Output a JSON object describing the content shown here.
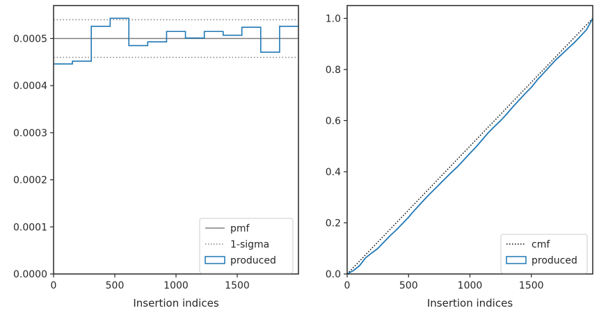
{
  "colors": {
    "produced": "#1f77b4",
    "pmf": "#808080",
    "sigma": "#808080",
    "cmf": "#000000",
    "frame": "#262626"
  },
  "chart_data": [
    {
      "type": "step-histogram",
      "title": "",
      "xlabel": "Insertion indices",
      "ylabel": "",
      "xlim": [
        0,
        2000
      ],
      "ylim": [
        0,
        0.00057
      ],
      "x_ticks": [
        0,
        500,
        1000,
        1500
      ],
      "x_tick_labels": [
        "0",
        "500",
        "1000",
        "1500"
      ],
      "y_ticks": [
        0,
        0.0001,
        0.0002,
        0.0003,
        0.0004,
        0.0005
      ],
      "y_tick_labels": [
        "0.0000",
        "0.0001",
        "0.0002",
        "0.0003",
        "0.0004",
        "0.0005"
      ],
      "legend_position": "lower right",
      "pmf": 0.0005,
      "sigma_band": [
        0.00046,
        0.00054
      ],
      "series": [
        {
          "name": "produced",
          "bin_edges": [
            0,
            154,
            308,
            462,
            615,
            769,
            923,
            1077,
            1231,
            1385,
            1538,
            1692,
            1846,
            2000
          ],
          "values": [
            0.000446,
            0.000452,
            0.000526,
            0.000543,
            0.000485,
            0.000493,
            0.000515,
            0.000501,
            0.000515,
            0.000507,
            0.000524,
            0.000471,
            0.000526
          ]
        }
      ],
      "legend": [
        {
          "label": "pmf",
          "style": "solid-line"
        },
        {
          "label": "1-sigma",
          "style": "dotted-line"
        },
        {
          "label": "produced",
          "style": "box"
        }
      ]
    },
    {
      "type": "line",
      "title": "",
      "xlabel": "Insertion indices",
      "ylabel": "",
      "xlim": [
        0,
        2000
      ],
      "ylim": [
        0,
        1.05
      ],
      "x_ticks": [
        0,
        500,
        1000,
        1500
      ],
      "x_tick_labels": [
        "0",
        "500",
        "1000",
        "1500"
      ],
      "y_ticks": [
        0,
        0.2,
        0.4,
        0.6,
        0.8,
        1.0
      ],
      "y_tick_labels": [
        "0.0",
        "0.2",
        "0.4",
        "0.6",
        "0.8",
        "1.0"
      ],
      "legend_position": "lower right",
      "series": [
        {
          "name": "cmf",
          "style": "dotted",
          "x": [
            0,
            2000
          ],
          "y": [
            0,
            1
          ]
        },
        {
          "name": "produced",
          "style": "solid",
          "x": [
            0,
            50,
            100,
            150,
            200,
            250,
            300,
            350,
            400,
            450,
            500,
            550,
            600,
            650,
            700,
            750,
            800,
            850,
            900,
            950,
            1000,
            1050,
            1100,
            1150,
            1200,
            1250,
            1300,
            1350,
            1400,
            1450,
            1500,
            1550,
            1600,
            1650,
            1700,
            1750,
            1800,
            1850,
            1900,
            1950,
            2000
          ],
          "y": [
            0,
            0.013,
            0.032,
            0.063,
            0.082,
            0.1,
            0.125,
            0.15,
            0.172,
            0.197,
            0.222,
            0.25,
            0.276,
            0.302,
            0.326,
            0.35,
            0.374,
            0.398,
            0.42,
            0.446,
            0.472,
            0.497,
            0.525,
            0.553,
            0.577,
            0.6,
            0.626,
            0.654,
            0.68,
            0.706,
            0.73,
            0.76,
            0.786,
            0.812,
            0.838,
            0.86,
            0.883,
            0.905,
            0.93,
            0.956,
            1.0
          ]
        }
      ],
      "legend": [
        {
          "label": "cmf",
          "style": "dotted-line"
        },
        {
          "label": "produced",
          "style": "box"
        }
      ]
    }
  ]
}
